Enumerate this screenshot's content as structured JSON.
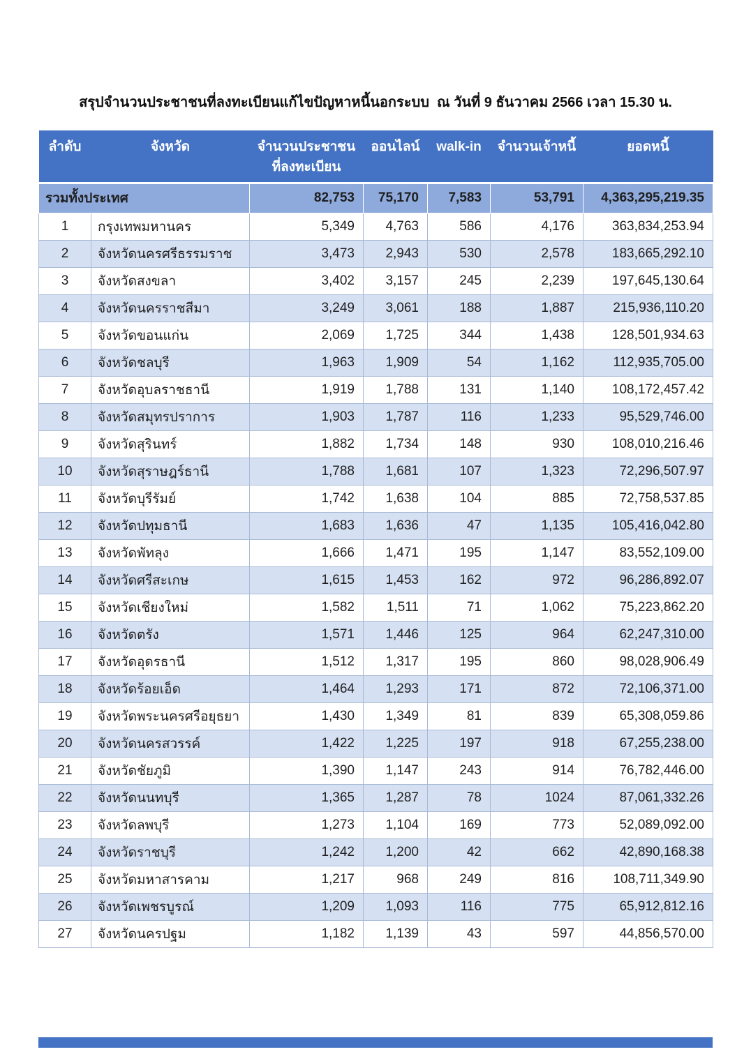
{
  "title": "สรุปจำนวนประชาชนที่ลงทะเบียนแก้ไขปัญหาหนี้นอกระบบ  ณ วันที่ 9 ธันวาคม 2566 เวลา 15.30 น.",
  "colors": {
    "header_bg": "#4472C4",
    "total_bg": "#8EAADC",
    "band_bg": "#D5E0F2",
    "grid": "#A9BAD6"
  },
  "table": {
    "headers": {
      "no": "ลำดับ",
      "province": "จังหวัด",
      "registered_line1": "จำนวนประชาชน",
      "registered_line2": "ที่ลงทะเบียน",
      "online": "ออนไลน์",
      "walkin": "walk-in",
      "creditors": "จำนวนเจ้าหนี้",
      "debt": "ยอดหนี้"
    },
    "total_row": {
      "label": "รวมทั้งประเทศ",
      "registered": "82,753",
      "online": "75,170",
      "walkin": "7,583",
      "creditors": "53,791",
      "debt": "4,363,295,219.35"
    },
    "rows": [
      {
        "no": "1",
        "province": "กรุงเทพมหานคร",
        "registered": "5,349",
        "online": "4,763",
        "walkin": "586",
        "creditors": "4,176",
        "debt": "363,834,253.94"
      },
      {
        "no": "2",
        "province": "จังหวัดนครศรีธรรมราช",
        "registered": "3,473",
        "online": "2,943",
        "walkin": "530",
        "creditors": "2,578",
        "debt": "183,665,292.10"
      },
      {
        "no": "3",
        "province": "จังหวัดสงขลา",
        "registered": "3,402",
        "online": "3,157",
        "walkin": "245",
        "creditors": "2,239",
        "debt": "197,645,130.64"
      },
      {
        "no": "4",
        "province": "จังหวัดนครราชสีมา",
        "registered": "3,249",
        "online": "3,061",
        "walkin": "188",
        "creditors": "1,887",
        "debt": "215,936,110.20"
      },
      {
        "no": "5",
        "province": "จังหวัดขอนแก่น",
        "registered": "2,069",
        "online": "1,725",
        "walkin": "344",
        "creditors": "1,438",
        "debt": "128,501,934.63"
      },
      {
        "no": "6",
        "province": "จังหวัดชลบุรี",
        "registered": "1,963",
        "online": "1,909",
        "walkin": "54",
        "creditors": "1,162",
        "debt": "112,935,705.00"
      },
      {
        "no": "7",
        "province": "จังหวัดอุบลราชธานี",
        "registered": "1,919",
        "online": "1,788",
        "walkin": "131",
        "creditors": "1,140",
        "debt": "108,172,457.42"
      },
      {
        "no": "8",
        "province": "จังหวัดสมุทรปราการ",
        "registered": "1,903",
        "online": "1,787",
        "walkin": "116",
        "creditors": "1,233",
        "debt": "95,529,746.00"
      },
      {
        "no": "9",
        "province": "จังหวัดสุรินทร์",
        "registered": "1,882",
        "online": "1,734",
        "walkin": "148",
        "creditors": "930",
        "debt": "108,010,216.46"
      },
      {
        "no": "10",
        "province": "จังหวัดสุราษฎร์ธานี",
        "registered": "1,788",
        "online": "1,681",
        "walkin": "107",
        "creditors": "1,323",
        "debt": "72,296,507.97"
      },
      {
        "no": "11",
        "province": "จังหวัดบุรีรัมย์",
        "registered": "1,742",
        "online": "1,638",
        "walkin": "104",
        "creditors": "885",
        "debt": "72,758,537.85"
      },
      {
        "no": "12",
        "province": "จังหวัดปทุมธานี",
        "registered": "1,683",
        "online": "1,636",
        "walkin": "47",
        "creditors": "1,135",
        "debt": "105,416,042.80"
      },
      {
        "no": "13",
        "province": "จังหวัดพัทลุง",
        "registered": "1,666",
        "online": "1,471",
        "walkin": "195",
        "creditors": "1,147",
        "debt": "83,552,109.00"
      },
      {
        "no": "14",
        "province": "จังหวัดศรีสะเกษ",
        "registered": "1,615",
        "online": "1,453",
        "walkin": "162",
        "creditors": "972",
        "debt": "96,286,892.07"
      },
      {
        "no": "15",
        "province": "จังหวัดเชียงใหม่",
        "registered": "1,582",
        "online": "1,511",
        "walkin": "71",
        "creditors": "1,062",
        "debt": "75,223,862.20"
      },
      {
        "no": "16",
        "province": "จังหวัดตรัง",
        "registered": "1,571",
        "online": "1,446",
        "walkin": "125",
        "creditors": "964",
        "debt": "62,247,310.00"
      },
      {
        "no": "17",
        "province": "จังหวัดอุดรธานี",
        "registered": "1,512",
        "online": "1,317",
        "walkin": "195",
        "creditors": "860",
        "debt": "98,028,906.49"
      },
      {
        "no": "18",
        "province": "จังหวัดร้อยเอ็ด",
        "registered": "1,464",
        "online": "1,293",
        "walkin": "171",
        "creditors": "872",
        "debt": "72,106,371.00"
      },
      {
        "no": "19",
        "province": "จังหวัดพระนครศรีอยุธยา",
        "registered": "1,430",
        "online": "1,349",
        "walkin": "81",
        "creditors": "839",
        "debt": "65,308,059.86"
      },
      {
        "no": "20",
        "province": "จังหวัดนครสวรรค์",
        "registered": "1,422",
        "online": "1,225",
        "walkin": "197",
        "creditors": "918",
        "debt": "67,255,238.00"
      },
      {
        "no": "21",
        "province": "จังหวัดชัยภูมิ",
        "registered": "1,390",
        "online": "1,147",
        "walkin": "243",
        "creditors": "914",
        "debt": "76,782,446.00"
      },
      {
        "no": "22",
        "province": "จังหวัดนนทบุรี",
        "registered": "1,365",
        "online": "1,287",
        "walkin": "78",
        "creditors": "1024",
        "debt": "87,061,332.26"
      },
      {
        "no": "23",
        "province": "จังหวัดลพบุรี",
        "registered": "1,273",
        "online": "1,104",
        "walkin": "169",
        "creditors": "773",
        "debt": "52,089,092.00"
      },
      {
        "no": "24",
        "province": "จังหวัดราชบุรี",
        "registered": "1,242",
        "online": "1,200",
        "walkin": "42",
        "creditors": "662",
        "debt": "42,890,168.38"
      },
      {
        "no": "25",
        "province": "จังหวัดมหาสารคาม",
        "registered": "1,217",
        "online": "968",
        "walkin": "249",
        "creditors": "816",
        "debt": "108,711,349.90"
      },
      {
        "no": "26",
        "province": "จังหวัดเพชรบูรณ์",
        "registered": "1,209",
        "online": "1,093",
        "walkin": "116",
        "creditors": "775",
        "debt": "65,912,812.16"
      },
      {
        "no": "27",
        "province": "จังหวัดนครปฐม",
        "registered": "1,182",
        "online": "1,139",
        "walkin": "43",
        "creditors": "597",
        "debt": "44,856,570.00"
      }
    ]
  }
}
